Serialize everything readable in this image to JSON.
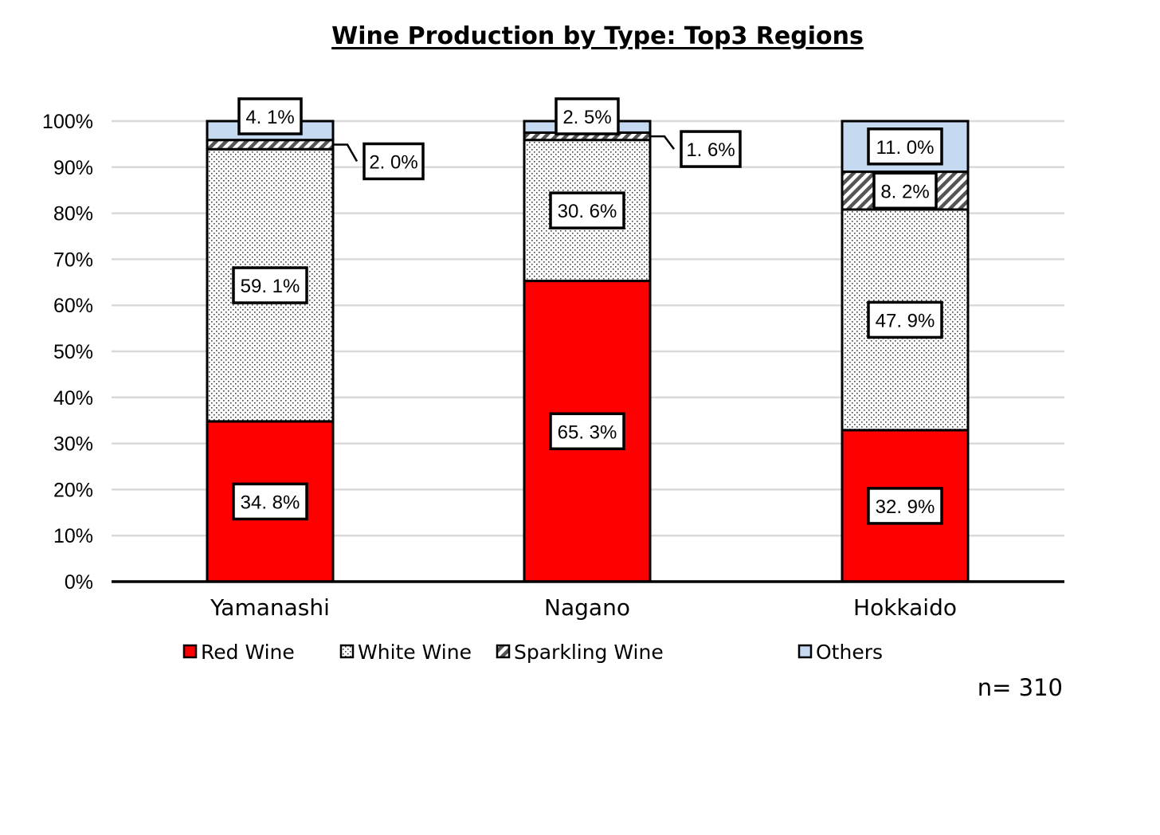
{
  "chart_data": {
    "type": "bar",
    "stacked": true,
    "title": "Wine Production by Type: Top3 Regions",
    "xlabel": "",
    "ylabel": "",
    "ylim": [
      0,
      100
    ],
    "y_ticks": [
      "0%",
      "10%",
      "20%",
      "30%",
      "40%",
      "50%",
      "60%",
      "70%",
      "80%",
      "90%",
      "100%"
    ],
    "categories": [
      "Yamanashi",
      "Nagano",
      "Hokkaido"
    ],
    "series": [
      {
        "name": "Red Wine",
        "values": [
          34.8,
          65.3,
          32.9
        ],
        "labels": [
          "34. 8%",
          "65. 3%",
          "32. 9%"
        ],
        "color": "#ff0000",
        "pattern": "solid"
      },
      {
        "name": "White Wine",
        "values": [
          59.1,
          30.6,
          47.9
        ],
        "labels": [
          "59. 1%",
          "30. 6%",
          "47. 9%"
        ],
        "color": "#ffffff",
        "pattern": "dots"
      },
      {
        "name": "Sparkling Wine",
        "values": [
          2.0,
          1.6,
          8.2
        ],
        "labels": [
          "2. 0%",
          "1. 6%",
          "8. 2%"
        ],
        "color": "#555555",
        "pattern": "diagonal-stripes"
      },
      {
        "name": "Others",
        "values": [
          4.1,
          2.5,
          11.0
        ],
        "labels": [
          "4. 1%",
          "2. 5%",
          "11. 0%"
        ],
        "color": "#c5d9f1",
        "pattern": "solid"
      }
    ],
    "grid": true,
    "legend_position": "bottom",
    "note": "n= 310"
  }
}
